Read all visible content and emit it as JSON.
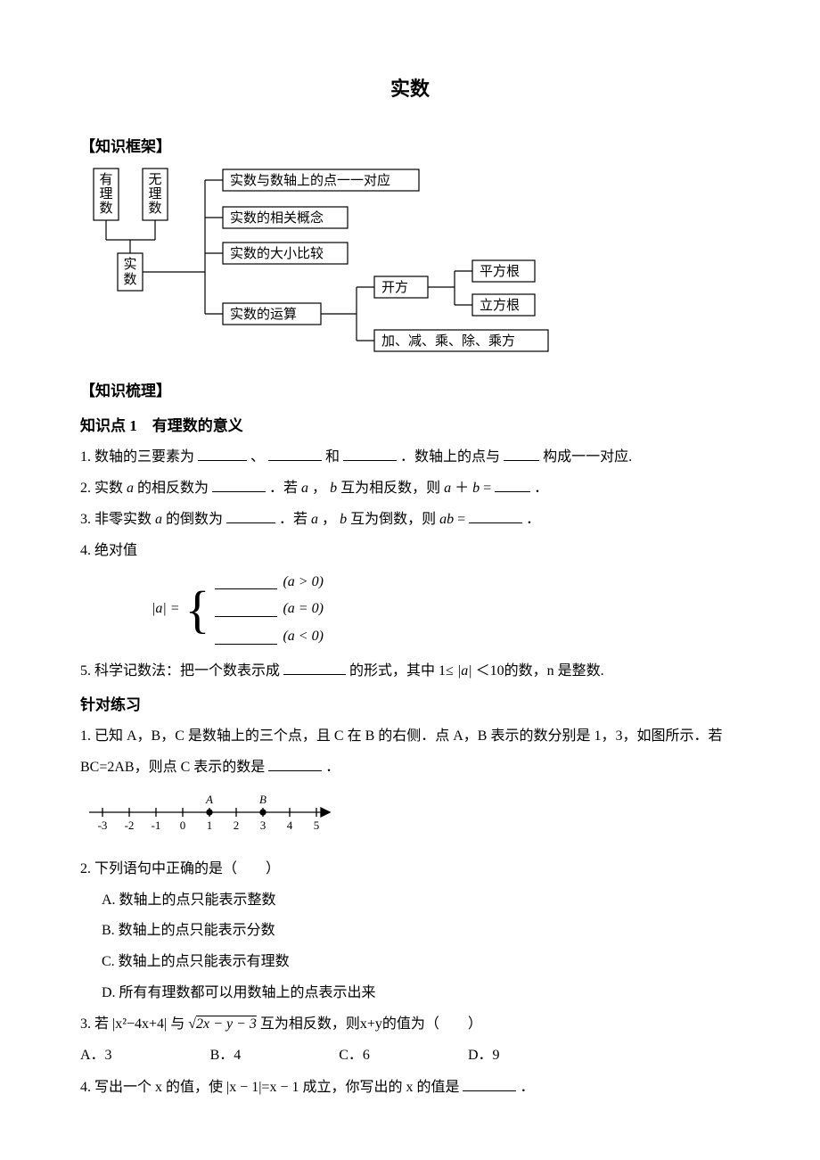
{
  "title": "实数",
  "sections": {
    "framework_head": "【知识框架】",
    "summary_head": "【知识梳理】",
    "kp1_head": "知识点 1　有理数的意义",
    "practice_head": "针对练习"
  },
  "tree": {
    "left_top1": "有理数",
    "left_top2": "无理数",
    "root": "实数",
    "b1": "实数与数轴上的点一一对应",
    "b2": "实数的相关概念",
    "b3": "实数的大小比较",
    "b4": "实数的运算",
    "c1": "开方",
    "d1": "平方根",
    "d2": "立方根",
    "c2": "加、减、乘、除、乘方"
  },
  "kp1": {
    "l1a": "1. 数轴的三要素为",
    "l1b": "、",
    "l1c": "和",
    "l1d": "．数轴上的点与",
    "l1e": "构成一一对应.",
    "l2a": "2. 实数",
    "l2b": "的相反数为",
    "l2c": "．若",
    "l2d": "，",
    "l2e": " 互为相反数，则",
    "l2f": "＋",
    "l2g": "=",
    "l2h": "．",
    "l3a": "3. 非零实数",
    "l3b": "的倒数为",
    "l3c": "．若",
    "l3d": "，",
    "l3e": " 互为倒数，则",
    "l3f": "=",
    "l3g": "．",
    "l4a": "4. 绝对值",
    "abs_lhs": "|a| =",
    "cond1": "( a > 0)",
    "cond2": "( a = 0)",
    "cond3": "( a < 0)",
    "l5a": "5. 科学记数法：把一个数表示成",
    "l5b": "的形式，其中 1≤",
    "l5c": "＜10的数，n 是整数.",
    "abs_a": "|a|"
  },
  "practice": {
    "q1a": "1. 已知 A，B，C 是数轴上的三个点，且 C 在 B 的右侧．点 A，B 表示的数分别是 1，3，如图所示．若",
    "q1b": "BC=2AB，则点 C 表示的数是",
    "q1c": "．",
    "numline": {
      "ticks": [
        "-3",
        "-2",
        "-1",
        "0",
        "1",
        "2",
        "3",
        "4",
        "5"
      ],
      "A_label": "A",
      "B_label": "B",
      "A_pos_index": 4,
      "B_pos_index": 6
    },
    "q2": "2. 下列语句中正确的是（　　）",
    "q2A": "A. 数轴上的点只能表示整数",
    "q2B": "B. 数轴上的点只能表示分数",
    "q2C": "C. 数轴上的点只能表示有理数",
    "q2D": "D. 所有有理数都可以用数轴上的点表示出来",
    "q3a": "3. 若 |x²−4x+4| 与",
    "q3b": "2x − y − 3",
    "q3c": "互为相反数，则x+y的值为（　　）",
    "q3_choices": {
      "A": "A．3",
      "B": "B．4",
      "C": "C．6",
      "D": "D．9"
    },
    "q4a": "4. 写出一个 x 的值，使 |x − 1|=x − 1 成立，你写出的 x 的值是",
    "q4b": "．"
  },
  "style": {
    "box_stroke": "#000000",
    "box_fill": "#ffffff",
    "line_stroke": "#000000",
    "font_tree": 15
  }
}
